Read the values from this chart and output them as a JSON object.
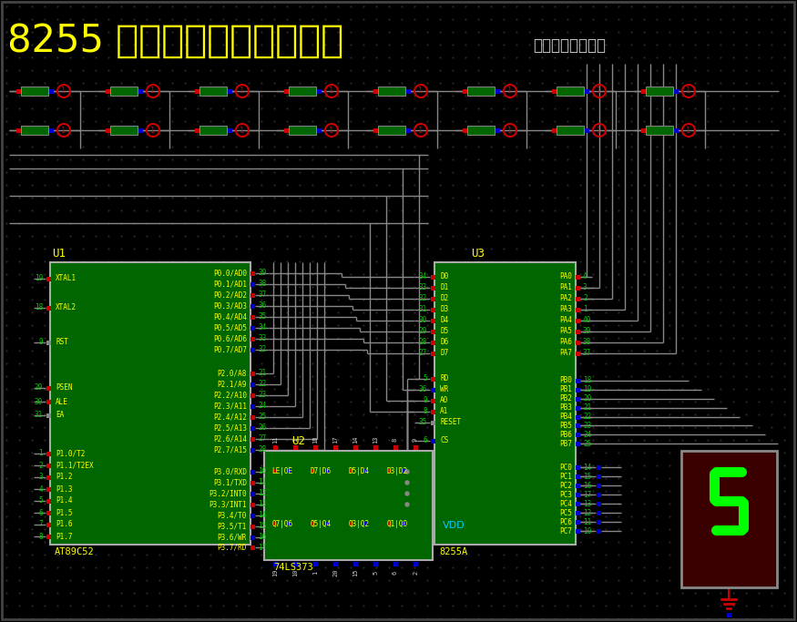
{
  "bg_color": "#000000",
  "title_text": "8255 驱动矩阵键盘与数码管",
  "title_color": "#FFFF00",
  "subtitle_text": "设计者：做西论道",
  "subtitle_color": "#FFFFFF",
  "u1_label": "U1",
  "u2_label": "U2",
  "u3_label": "U3",
  "u1_sublabel": "AT89C52",
  "u2_sublabel": "74LS373",
  "u3_sublabel": "8255A",
  "chip_color": "#006600",
  "wire_color": "#888888",
  "red_pin_color": "#CC0000",
  "blue_pin_color": "#0000CC",
  "gray_pin_color": "#888888"
}
